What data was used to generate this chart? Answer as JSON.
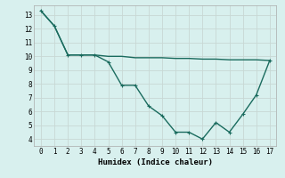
{
  "line1_x": [
    0,
    1,
    2,
    3,
    4,
    5,
    6,
    7,
    8,
    9,
    10,
    11,
    12,
    13,
    14,
    15,
    16,
    17
  ],
  "line1_y": [
    13.3,
    12.2,
    10.1,
    10.1,
    10.1,
    9.6,
    7.9,
    7.9,
    6.4,
    5.7,
    4.5,
    4.5,
    4.0,
    5.2,
    4.5,
    5.8,
    7.2,
    9.7
  ],
  "line2_x": [
    0,
    1,
    2,
    3,
    4,
    5,
    6,
    7,
    8,
    9,
    10,
    11,
    12,
    13,
    14,
    15,
    16,
    17
  ],
  "line2_y": [
    13.3,
    12.2,
    10.1,
    10.1,
    10.1,
    10.0,
    10.0,
    9.9,
    9.9,
    9.9,
    9.85,
    9.85,
    9.8,
    9.8,
    9.75,
    9.75,
    9.75,
    9.7
  ],
  "line_color": "#1a6b5e",
  "bg_color": "#d8f0ee",
  "grid_major_color": "#c8d8d4",
  "xlabel": "Humidex (Indice chaleur)",
  "xlim": [
    -0.5,
    17.5
  ],
  "ylim": [
    3.5,
    13.7
  ],
  "xticks": [
    0,
    1,
    2,
    3,
    4,
    5,
    6,
    7,
    8,
    9,
    10,
    11,
    12,
    13,
    14,
    15,
    16,
    17
  ],
  "yticks": [
    4,
    5,
    6,
    7,
    8,
    9,
    10,
    11,
    12,
    13
  ],
  "markersize": 2.5,
  "linewidth": 1.0
}
